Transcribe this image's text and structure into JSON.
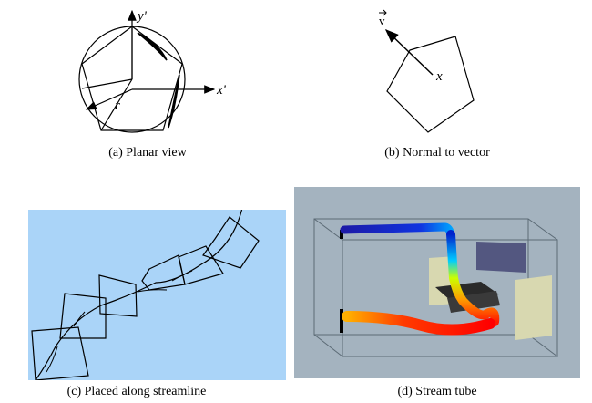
{
  "figure": {
    "panel_a": {
      "caption": "(a) Planar view",
      "axis_y_label": "y'",
      "axis_x_label": "x'",
      "radius_label": "r"
    },
    "panel_b": {
      "caption": "(b) Normal to vector",
      "vector_label": "v",
      "point_label": "x"
    },
    "panel_c": {
      "caption": "(c) Placed along streamline",
      "background_color": "#aad4f8"
    },
    "panel_d": {
      "caption": "(d) Stream tube",
      "background_color": "#a4b3bf",
      "tube_colors": [
        "#0022cc",
        "#00ccff",
        "#ccff00",
        "#ff9900",
        "#ff1a00"
      ]
    }
  }
}
